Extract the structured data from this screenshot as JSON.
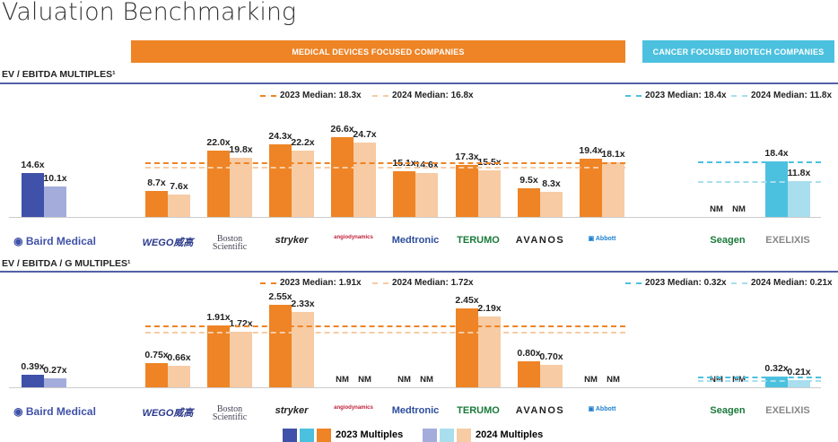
{
  "title": "Valuation Benchmarking",
  "bands": {
    "devices": "MEDICAL DEVICES  FOCUSED COMPANIES",
    "biotech": "CANCER FOCUSED BIOTECH COMPANIES"
  },
  "colors": {
    "navy": "#3F51A8",
    "navy_light": "#A3ACDB",
    "orange": "#EE8425",
    "orange_light": "#F7CBA3",
    "cyan": "#4CC1DF",
    "cyan_light": "#A8DEEE",
    "band_orange": "#EE8425",
    "band_cyan": "#4CC1DF"
  },
  "companies": [
    {
      "name": "Baird Medical",
      "group": "navy"
    },
    {
      "name": "WEGO威高",
      "group": "orange"
    },
    {
      "name": "Boston Scientific",
      "group": "orange"
    },
    {
      "name": "stryker",
      "group": "orange"
    },
    {
      "name": "angiodynamics",
      "group": "orange"
    },
    {
      "name": "Medtronic",
      "group": "orange"
    },
    {
      "name": "TERUMO",
      "group": "orange"
    },
    {
      "name": "AVANOS",
      "group": "orange"
    },
    {
      "name": "Abbott",
      "group": "orange"
    },
    {
      "name": "Seagen",
      "group": "cyan"
    },
    {
      "name": "EXELIXIS",
      "group": "cyan"
    }
  ],
  "chart_data": [
    {
      "type": "bar",
      "title": "EV / EBITDA MULTIPLES¹",
      "series": [
        {
          "name": "2023 Multiples",
          "values": [
            14.6,
            8.7,
            22.0,
            24.3,
            26.6,
            15.1,
            17.3,
            9.5,
            19.4,
            null,
            null
          ],
          "labels": [
            "14.6x",
            "8.7x",
            "22.0x",
            "24.3x",
            "26.6x",
            "15.1x",
            "17.3x",
            "9.5x",
            "19.4x",
            "NM",
            "18.4x"
          ]
        },
        {
          "name": "2024 Multiples",
          "values": [
            10.1,
            7.6,
            19.8,
            22.2,
            24.7,
            14.6,
            15.5,
            8.3,
            18.1,
            null,
            null
          ],
          "labels": [
            "10.1x",
            "7.6x",
            "19.8x",
            "22.2x",
            "24.7x",
            "14.6x",
            "15.5x",
            "8.3x",
            "18.1x",
            "NM",
            "11.8x"
          ]
        }
      ],
      "biotech_values": {
        "2023": [
          null,
          18.4
        ],
        "2024": [
          null,
          11.8
        ]
      },
      "medians": {
        "devices": [
          {
            "label": "2023 Median: 18.3x",
            "value": 18.3
          },
          {
            "label": "2024 Median: 16.8x",
            "value": 16.8
          }
        ],
        "biotech": [
          {
            "label": "2023 Median: 18.4x",
            "value": 18.4
          },
          {
            "label": "2024 Median: 11.8x",
            "value": 11.8
          }
        ]
      }
    },
    {
      "type": "bar",
      "title": "EV / EBITDA / G MULTIPLES¹",
      "series": [
        {
          "name": "2023 Multiples",
          "values": [
            0.39,
            0.75,
            1.91,
            2.55,
            null,
            null,
            2.45,
            0.8,
            null,
            null,
            null
          ],
          "labels": [
            "0.39x",
            "0.75x",
            "1.91x",
            "2.55x",
            "NM",
            "NM",
            "2.45x",
            "0.80x",
            "NM",
            "NM",
            "0.32x"
          ]
        },
        {
          "name": "2024 Multiples",
          "values": [
            0.27,
            0.66,
            1.72,
            2.33,
            null,
            null,
            2.19,
            0.7,
            null,
            null,
            null
          ],
          "labels": [
            "0.27x",
            "0.66x",
            "1.72x",
            "2.33x",
            "NM",
            "NM",
            "2.19x",
            "0.70x",
            "NM",
            "NM",
            "0.21x"
          ]
        }
      ],
      "biotech_values": {
        "2023": [
          null,
          0.32
        ],
        "2024": [
          null,
          0.21
        ]
      },
      "medians": {
        "devices": [
          {
            "label": "2023 Median: 1.91x",
            "value": 1.91
          },
          {
            "label": "2024 Median: 1.72x",
            "value": 1.72
          }
        ],
        "biotech": [
          {
            "label": "2023 Median: 0.32x",
            "value": 0.32
          },
          {
            "label": "2024 Median: 0.21x",
            "value": 0.21
          }
        ]
      }
    }
  ],
  "legend": {
    "y2023": "2023 Multiples",
    "y2024": "2024 Multiples"
  }
}
